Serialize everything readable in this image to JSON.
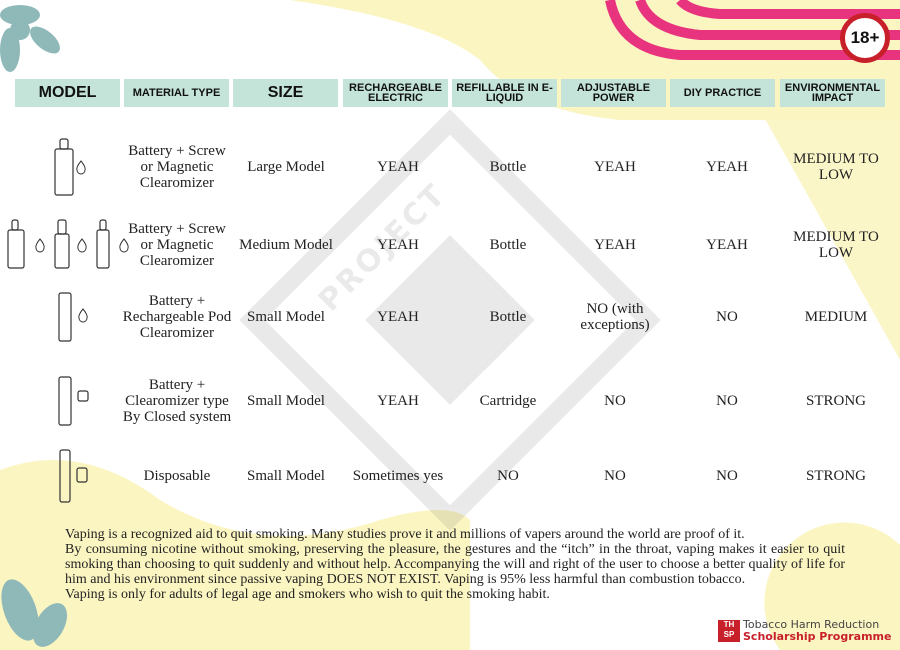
{
  "badge": "18+",
  "watermark": "PROJECT SAFE STORE",
  "headers": [
    "MODEL",
    "MATERIAL TYPE",
    "SIZE",
    "RECHARGEABLE ELECTRIC",
    "REFILLABLE IN E-LIQUID",
    "ADJUSTABLE POWER",
    "DIY PRACTICE",
    "ENVIRONMENTAL IMPACT"
  ],
  "rows": [
    {
      "icon": "box-mod-with-drop-icon",
      "material": "Battery + Screw or Magnetic Clearomizer",
      "size": "Large Model",
      "rechargeable": "YEAH",
      "refillable": "Bottle",
      "adjustable": "YEAH",
      "diy": "YEAH",
      "impact": "MEDIUM TO LOW"
    },
    {
      "icon": "medium-mods-with-drops-icon",
      "material": "Battery + Screw or Magnetic Clearomizer",
      "size": "Medium Model",
      "rechargeable": "YEAH",
      "refillable": "Bottle",
      "adjustable": "YEAH",
      "diy": "YEAH",
      "impact": "MEDIUM TO LOW"
    },
    {
      "icon": "pod-with-drop-icon",
      "material": "Battery + Rechargeable Pod Clearomizer",
      "size": "Small Model",
      "rechargeable": "YEAH",
      "refillable": "Bottle",
      "adjustable": "NO (with exceptions)",
      "diy": "NO",
      "impact": "MEDIUM"
    },
    {
      "icon": "closed-pod-with-cartridge-icon",
      "material": "Battery + Clearomizer type By Closed system",
      "size": "Small Model",
      "rechargeable": "YEAH",
      "refillable": "Cartridge",
      "adjustable": "NO",
      "diy": "NO",
      "impact": "STRONG"
    },
    {
      "icon": "disposable-vape-icon",
      "material": "Disposable",
      "size": "Small Model",
      "rechargeable": "Sometimes yes",
      "refillable": "NO",
      "adjustable": "NO",
      "diy": "NO",
      "impact": "STRONG"
    }
  ],
  "paragraphs": [
    "Vaping is a recognized aid to quit smoking. Many studies prove it and millions of vapers around the world are proof of it.",
    "By consuming nicotine without smoking, preserving the pleasure, the gestures and the “itch” in the throat, vaping makes it easier to quit smoking than choosing to quit suddenly and without help. Accompanying the will and right of the user to choose a better quality of life for him and his environment since passive vaping DOES NOT EXIST. Vaping is 95% less harmful than combustion tobacco.",
    "Vaping is only for adults of legal age and smokers who wish to quit the smoking habit."
  ],
  "logo": {
    "mark": "THRSP",
    "line1": "Tobacco Harm Reduction",
    "line2": "Scholarship Programme"
  },
  "colors": {
    "header": "#c4e4da",
    "pink": "#e8347e",
    "yellow": "#fbf5c2",
    "teal": "#8fb9b8",
    "red": "#c8202a"
  }
}
